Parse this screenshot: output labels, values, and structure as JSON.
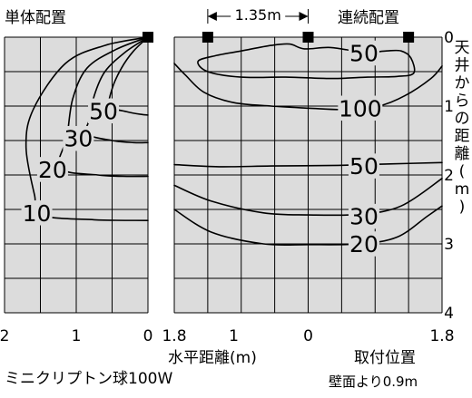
{
  "chart_data": [
    {
      "type": "contour",
      "title": "単体配置",
      "bottom_label": "ミニクリプトン球100W",
      "x_ticks": [
        "2",
        "1",
        "0"
      ],
      "xlim": [
        2,
        0
      ],
      "ylim": [
        0,
        4
      ],
      "fixture_x": [
        0
      ],
      "contours": [
        {
          "label": "10",
          "label_at": [
            1.55,
            2.55
          ],
          "points": [
            [
              0,
              0
            ],
            [
              0.6,
              0.12
            ],
            [
              1.15,
              0.38
            ],
            [
              1.6,
              1.05
            ],
            [
              1.7,
              1.6
            ],
            [
              1.58,
              2.3
            ],
            [
              1.5,
              2.58
            ],
            [
              0.75,
              2.65
            ],
            [
              0,
              2.66
            ]
          ]
        },
        {
          "label": "20",
          "label_at": [
            1.33,
            1.92
          ],
          "points": [
            [
              0,
              0
            ],
            [
              0.45,
              0.18
            ],
            [
              0.85,
              0.45
            ],
            [
              1.05,
              0.9
            ],
            [
              1.13,
              1.45
            ],
            [
              1.23,
              1.9
            ],
            [
              0.7,
              2.0
            ],
            [
              0.35,
              2.02
            ],
            [
              0,
              2.02
            ]
          ]
        },
        {
          "label": "30",
          "label_at": [
            0.97,
            1.47
          ],
          "points": [
            [
              0,
              0
            ],
            [
              0.32,
              0.22
            ],
            [
              0.6,
              0.5
            ],
            [
              0.75,
              0.85
            ],
            [
              0.8,
              1.15
            ],
            [
              0.85,
              1.4
            ],
            [
              0.5,
              1.5
            ],
            [
              0.2,
              1.53
            ],
            [
              0,
              1.53
            ]
          ]
        },
        {
          "label": "50",
          "label_at": [
            0.62,
            1.07
          ],
          "points": [
            [
              0,
              0
            ],
            [
              0.2,
              0.2
            ],
            [
              0.37,
              0.45
            ],
            [
              0.5,
              0.75
            ],
            [
              0.53,
              1.0
            ],
            [
              0.3,
              1.08
            ],
            [
              0.1,
              1.12
            ],
            [
              0,
              1.13
            ]
          ]
        }
      ]
    },
    {
      "type": "contour",
      "title": "連続配置",
      "spacing_label": "1.35m",
      "x_ticks": [
        "1.8",
        "1",
        "0",
        "1.8"
      ],
      "x_tick_values": [
        -1.8,
        -1,
        0,
        1.8
      ],
      "xlim": [
        -1.8,
        1.8
      ],
      "xlabel": "水平距離(m)",
      "mount_label": "取付位置",
      "wall_label": "壁面より0.9m",
      "ylabel": "天井からの距離(m)",
      "y_ticks": [
        "0",
        "1",
        "2",
        "3",
        "4"
      ],
      "ylim": [
        0,
        4
      ],
      "fixture_x": [
        -1.35,
        0,
        1.35
      ],
      "contours": [
        {
          "label": "20",
          "label_at": [
            0.75,
            3.0
          ],
          "points": [
            [
              -1.8,
              2.5
            ],
            [
              -1.3,
              2.83
            ],
            [
              -0.6,
              3.0
            ],
            [
              0,
              3.01
            ],
            [
              0.7,
              3.0
            ],
            [
              1.2,
              2.9
            ],
            [
              1.6,
              2.6
            ],
            [
              1.8,
              2.45
            ]
          ]
        },
        {
          "label": "30",
          "label_at": [
            0.75,
            2.6
          ],
          "points": [
            [
              -1.8,
              2.15
            ],
            [
              -1.3,
              2.38
            ],
            [
              -0.6,
              2.55
            ],
            [
              0,
              2.58
            ],
            [
              0.7,
              2.57
            ],
            [
              1.25,
              2.45
            ],
            [
              1.8,
              2.05
            ]
          ]
        },
        {
          "label": "50",
          "label_at": [
            0.75,
            1.87
          ],
          "points": [
            [
              -1.8,
              1.85
            ],
            [
              -1.2,
              1.88
            ],
            [
              -0.5,
              1.87
            ],
            [
              0.4,
              1.86
            ],
            [
              1.1,
              1.84
            ],
            [
              1.8,
              1.82
            ]
          ]
        },
        {
          "label": "100",
          "label_at": [
            0.7,
            1.03
          ],
          "points": [
            [
              -1.8,
              0.38
            ],
            [
              -1.65,
              0.55
            ],
            [
              -1.4,
              0.8
            ],
            [
              -1.0,
              0.95
            ],
            [
              -0.5,
              1.0
            ],
            [
              0,
              1.03
            ],
            [
              0.5,
              1.05
            ],
            [
              0.95,
              1.0
            ],
            [
              1.3,
              0.85
            ],
            [
              1.65,
              0.6
            ],
            [
              1.8,
              0.42
            ]
          ]
        },
        {
          "label": "50",
          "label_at": [
            0.75,
            0.23
          ],
          "closed": true,
          "points": [
            [
              -1.48,
              0.35
            ],
            [
              -1.35,
              0.5
            ],
            [
              -0.9,
              0.58
            ],
            [
              -0.3,
              0.58
            ],
            [
              0.3,
              0.6
            ],
            [
              0.8,
              0.58
            ],
            [
              1.2,
              0.57
            ],
            [
              1.42,
              0.52
            ],
            [
              1.38,
              0.3
            ],
            [
              1.25,
              0.2
            ],
            [
              1.05,
              0.2
            ],
            [
              0.75,
              0.22
            ],
            [
              0.3,
              0.15
            ],
            [
              -0.05,
              0.17
            ],
            [
              -0.25,
              0.1
            ],
            [
              -0.5,
              0.12
            ],
            [
              -0.9,
              0.2
            ],
            [
              -1.25,
              0.27
            ]
          ]
        }
      ]
    }
  ]
}
